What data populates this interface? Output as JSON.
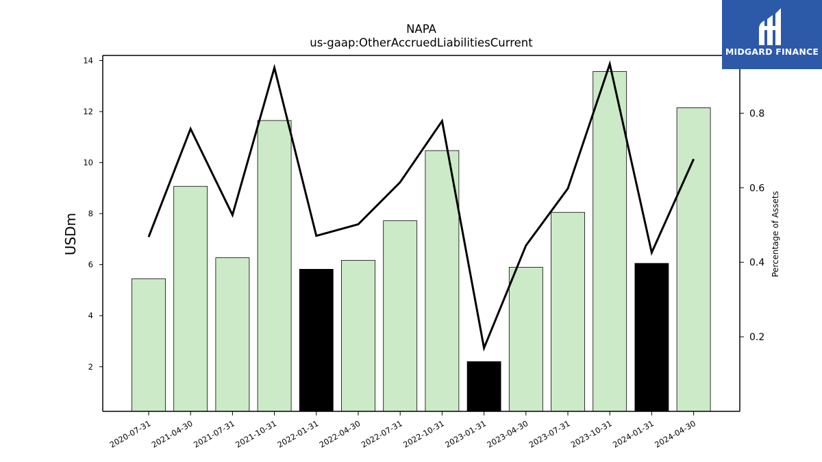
{
  "chart_data": {
    "type": "bar",
    "title": "NAPA",
    "subtitle": "us-gaap:OtherAccruedLiabilitiesCurrent",
    "ylabel": "USDm",
    "y2label": "Percentage of Assets",
    "categories": [
      "2020-07-31",
      "2021-04-30",
      "2021-07-31",
      "2021-10-31",
      "2022-01-31",
      "2022-04-30",
      "2022-07-31",
      "2022-10-31",
      "2023-01-31",
      "2023-04-30",
      "2023-07-31",
      "2023-10-31",
      "2024-01-31",
      "2024-04-30"
    ],
    "series": [
      {
        "values": [
          5.45,
          9.07,
          6.27,
          11.65,
          5.82,
          6.17,
          7.72,
          10.47,
          2.2,
          5.9,
          8.05,
          13.57,
          6.05,
          12.15
        ]
      },
      {
        "axis": "right",
        "type": "line",
        "values": [
          0.468,
          0.758,
          0.527,
          0.922,
          0.471,
          0.502,
          0.615,
          0.779,
          0.17,
          0.445,
          0.598,
          0.932,
          0.426,
          0.677
        ]
      }
    ],
    "highlighted_categories": [
      "2022-01-31",
      "2023-01-31",
      "2024-01-31"
    ],
    "ylim": [
      0.25,
      14.2
    ],
    "y2lim": [
      0.0,
      0.955
    ],
    "yticks": [
      2,
      4,
      6,
      8,
      10,
      12,
      14
    ],
    "y2ticks": [
      0.2,
      0.4,
      0.6,
      0.8
    ],
    "colors": {
      "bar": "#cdeac8",
      "highlight_bar": "#000000",
      "line": "#000000"
    }
  },
  "logo": {
    "text": "MIDGARD FINANCE",
    "background": "#2c5aa8"
  }
}
